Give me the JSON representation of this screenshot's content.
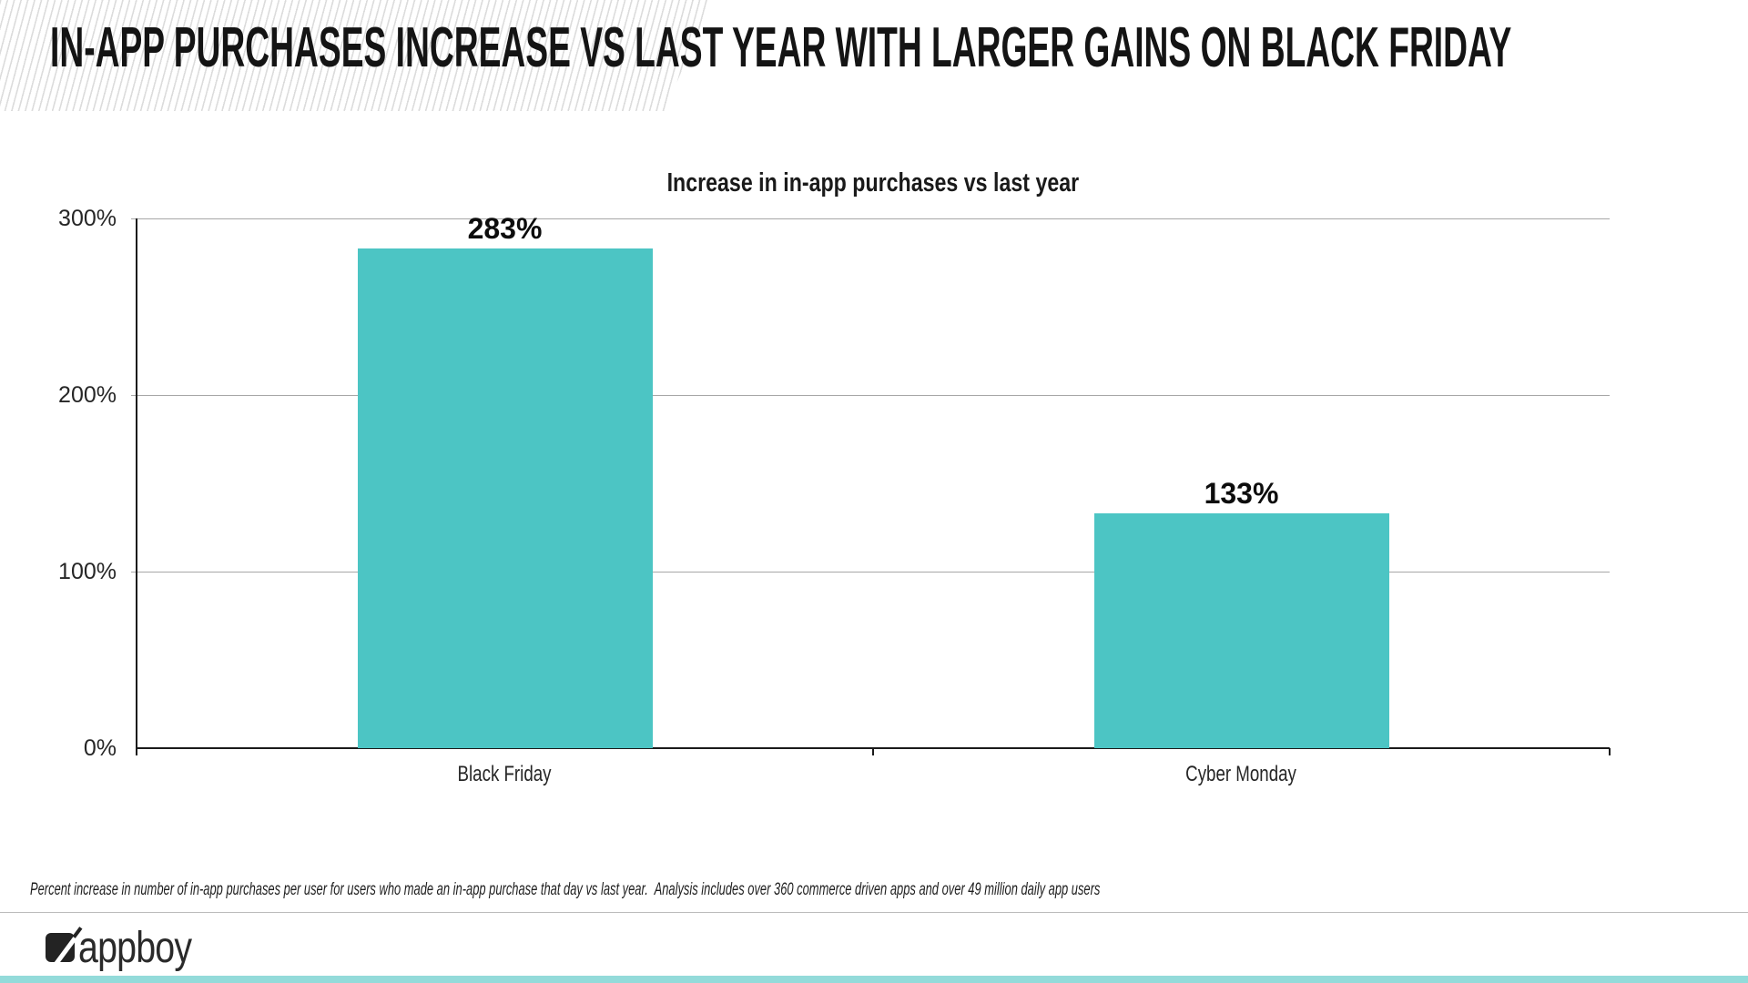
{
  "slide": {
    "title": "IN-APP PURCHASES INCREASE VS LAST YEAR WITH LARGER GAINS ON BLACK FRIDAY"
  },
  "chart_data": {
    "type": "bar",
    "title": "Increase in in-app purchases vs last year",
    "categories": [
      "Black Friday",
      "Cyber Monday"
    ],
    "values": [
      283,
      133
    ],
    "value_labels": [
      "283%",
      "133%"
    ],
    "xlabel": "",
    "ylabel": "",
    "ylim": [
      0,
      300
    ],
    "yticks": [
      0,
      100,
      200,
      300
    ],
    "ytick_labels": [
      "0%",
      "100%",
      "200%",
      "300%"
    ],
    "grid": true,
    "legend": false,
    "bar_color": "#4CC5C4"
  },
  "footnote": "Percent increase in number of in-app purchases per user for users who made an in-app purchase that day vs last year.  Analysis includes over 360 commerce driven apps and over 49 million daily app users",
  "footer": {
    "logo_text": "appboy"
  },
  "colors": {
    "accent_teal": "#4CC5C4",
    "strip_teal": "#93DBDA",
    "hatch_gray": "#DCDCDC",
    "gridline_gray": "#A7A7A7",
    "axis_black": "#1A1A1A"
  }
}
